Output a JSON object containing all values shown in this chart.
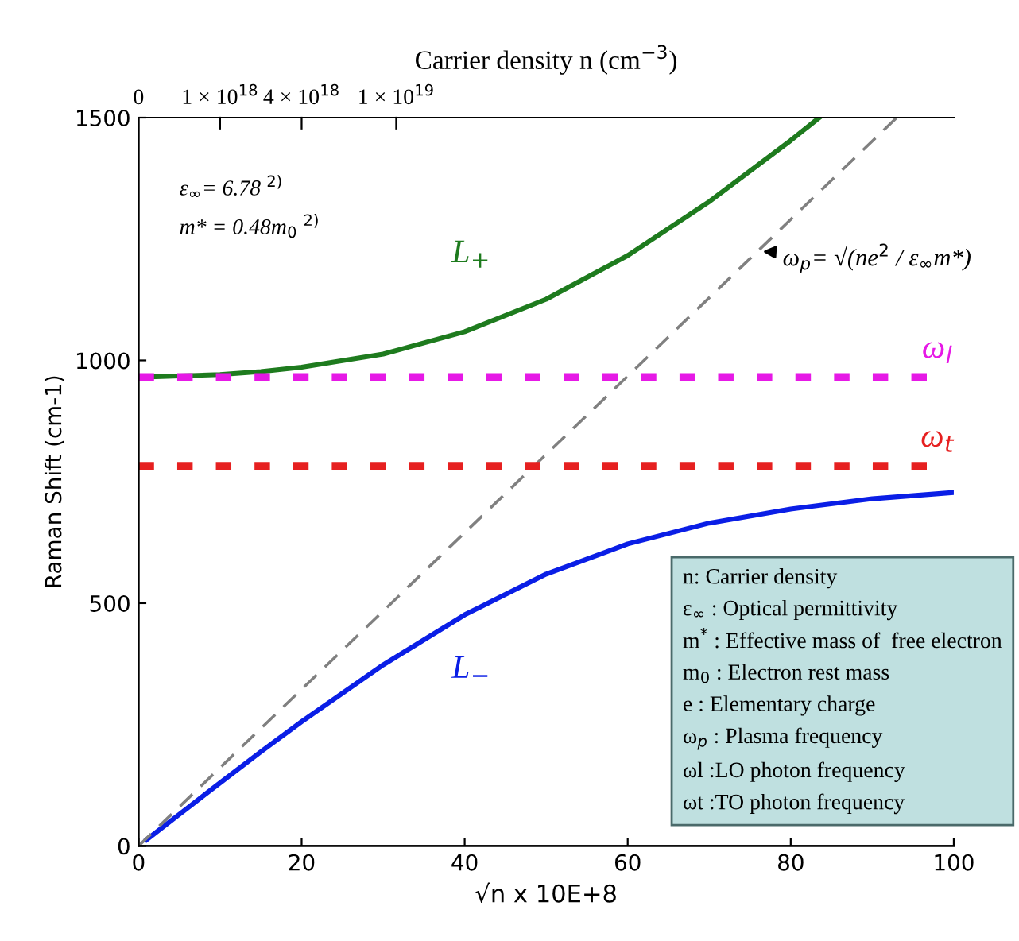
{
  "chart_data": {
    "type": "line",
    "xlabel": "√n x 10E+8",
    "ylabel": "Raman Shift (cm-1)",
    "x2label": "Carrier density n (cm$^{−3}$)",
    "xlim": [
      0,
      100
    ],
    "xticks": [
      0,
      20,
      40,
      60,
      80,
      100
    ],
    "ylim": [
      0,
      1500
    ],
    "yticks": [
      0,
      500,
      1000,
      1500
    ],
    "grid": false,
    "legend": false,
    "marker": "none",
    "series": [
      {
        "name": "L$_{+}$",
        "color": "#1e7b1e",
        "line_style": "solid",
        "x": [
          1,
          5,
          10,
          15,
          20,
          30,
          40,
          50,
          60,
          70,
          80,
          83.5
        ],
        "values": [
          966,
          968,
          971,
          977,
          986,
          1013,
          1059,
          1126,
          1216,
          1327,
          1453,
          1500
        ]
      },
      {
        "name": "L$_{−}$",
        "color": "#0a1ee6",
        "line_style": "solid",
        "x": [
          1,
          5,
          10,
          15,
          20,
          30,
          40,
          50,
          60,
          70,
          80,
          90,
          100
        ],
        "values": [
          13,
          65,
          130,
          194,
          256,
          373,
          476,
          560,
          622,
          665,
          694,
          715,
          728
        ]
      },
      {
        "color": "#808080",
        "line_style": "dashed",
        "x": [
          0,
          93
        ],
        "values": [
          0,
          1500
        ]
      }
    ],
    "ref_lines": [
      {
        "axis": "y",
        "value": 966,
        "label": "ω$_{l}$",
        "color": "#e619e6",
        "line_style": "dotted"
      },
      {
        "axis": "y",
        "value": 783,
        "label": "ω$_{t}$",
        "color": "#e62020",
        "line_style": "dotted"
      }
    ],
    "annotations": [
      "0",
      "1 × 10$^{18}$",
      "4 × 10$^{18}$",
      "1 × 10$^{19}$",
      "ε$_{∞}$= 6.78 $^{2)}$",
      "m* = 0.48m$_{0}$ $^{2)}$",
      {
        "text": "ω$_{p}$= √(ne$^{2}$ / ε$_{∞}$m*)",
        "x": 76,
        "y": 1225
      },
      "n: Carrier density",
      "ε$_{∞}$ : Optical permittivity",
      "m$^{*}$ : Effective mass of  free electron",
      "m$_{0}$ : Electron rest mass",
      "e : Elementary charge",
      "ω$_{p}$ : Plasma frequency",
      "ωl :LO photon frequency",
      "ωt :TO photon frequency"
    ]
  }
}
